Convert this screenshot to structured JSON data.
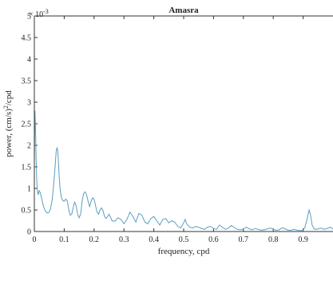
{
  "chart_data": {
    "type": "line",
    "title": "Amasra",
    "xlabel": "frequency, cpd",
    "ylabel_base": "power, (cm/s)",
    "ylabel_sup": "2",
    "ylabel_tail": "/cpd",
    "y_exponent_base": "× 10",
    "y_exponent_sup": "-3",
    "xlim": [
      0,
      1
    ],
    "ylim": [
      0,
      5
    ],
    "xticks": [
      0,
      0.1,
      0.2,
      0.3,
      0.4,
      0.5,
      0.6,
      0.7,
      0.8,
      0.9
    ],
    "xtick_labels": [
      "0",
      "0.1",
      "0.2",
      "0.3",
      "0.4",
      "0.5",
      "0.6",
      "0.7",
      "0.8",
      "0.9"
    ],
    "yticks": [
      0,
      0.5,
      1,
      1.5,
      2,
      2.5,
      3,
      3.5,
      4,
      4.5,
      5
    ],
    "ytick_labels": [
      "0",
      "0.5",
      "1",
      "1.5",
      "2",
      "2.5",
      "3",
      "3.5",
      "4",
      "4.5",
      "5"
    ],
    "grid": false,
    "line_color": "#5a9fc0",
    "series": [
      {
        "x": [
          0.0,
          0.002,
          0.004,
          0.006,
          0.008,
          0.01,
          0.013,
          0.016,
          0.02,
          0.025,
          0.03,
          0.035,
          0.04,
          0.045,
          0.05,
          0.055,
          0.06,
          0.065,
          0.07,
          0.073,
          0.076,
          0.078,
          0.08,
          0.083,
          0.086,
          0.09,
          0.095,
          0.1,
          0.105,
          0.11,
          0.115,
          0.12,
          0.125,
          0.13,
          0.135,
          0.14,
          0.145,
          0.15,
          0.155,
          0.16,
          0.165,
          0.17,
          0.175,
          0.18,
          0.185,
          0.19,
          0.195,
          0.2,
          0.205,
          0.21,
          0.215,
          0.22,
          0.225,
          0.23,
          0.235,
          0.24,
          0.245,
          0.25,
          0.255,
          0.26,
          0.27,
          0.28,
          0.29,
          0.3,
          0.31,
          0.32,
          0.33,
          0.34,
          0.35,
          0.36,
          0.37,
          0.38,
          0.39,
          0.4,
          0.41,
          0.42,
          0.43,
          0.44,
          0.45,
          0.46,
          0.47,
          0.48,
          0.49,
          0.5,
          0.505,
          0.51,
          0.52,
          0.53,
          0.54,
          0.55,
          0.56,
          0.57,
          0.58,
          0.59,
          0.6,
          0.61,
          0.62,
          0.63,
          0.64,
          0.65,
          0.66,
          0.67,
          0.68,
          0.69,
          0.7,
          0.71,
          0.72,
          0.73,
          0.74,
          0.75,
          0.76,
          0.77,
          0.78,
          0.79,
          0.8,
          0.81,
          0.82,
          0.83,
          0.84,
          0.85,
          0.86,
          0.87,
          0.88,
          0.89,
          0.9,
          0.905,
          0.91,
          0.915,
          0.92,
          0.925,
          0.93,
          0.935,
          0.94,
          0.95,
          0.96,
          0.97,
          0.98,
          0.99,
          1.0
        ],
        "y": [
          1.6,
          2.8,
          2.4,
          1.7,
          1.2,
          0.95,
          0.85,
          0.95,
          0.9,
          0.75,
          0.6,
          0.5,
          0.45,
          0.43,
          0.45,
          0.55,
          0.75,
          1.1,
          1.55,
          1.85,
          1.95,
          1.9,
          1.7,
          1.3,
          1.0,
          0.8,
          0.72,
          0.7,
          0.75,
          0.72,
          0.52,
          0.38,
          0.4,
          0.55,
          0.68,
          0.6,
          0.4,
          0.32,
          0.4,
          0.7,
          0.88,
          0.92,
          0.85,
          0.7,
          0.58,
          0.7,
          0.78,
          0.75,
          0.6,
          0.45,
          0.4,
          0.5,
          0.55,
          0.48,
          0.35,
          0.3,
          0.35,
          0.4,
          0.33,
          0.25,
          0.24,
          0.32,
          0.28,
          0.18,
          0.28,
          0.45,
          0.35,
          0.22,
          0.42,
          0.38,
          0.22,
          0.18,
          0.3,
          0.35,
          0.25,
          0.15,
          0.28,
          0.3,
          0.2,
          0.25,
          0.22,
          0.12,
          0.08,
          0.2,
          0.28,
          0.18,
          0.1,
          0.08,
          0.12,
          0.1,
          0.07,
          0.05,
          0.1,
          0.12,
          0.07,
          0.05,
          0.15,
          0.1,
          0.05,
          0.08,
          0.14,
          0.09,
          0.05,
          0.04,
          0.06,
          0.1,
          0.06,
          0.04,
          0.07,
          0.05,
          0.03,
          0.04,
          0.06,
          0.08,
          0.05,
          0.03,
          0.04,
          0.09,
          0.06,
          0.03,
          0.03,
          0.05,
          0.03,
          0.02,
          0.03,
          0.08,
          0.2,
          0.35,
          0.5,
          0.38,
          0.15,
          0.08,
          0.05,
          0.06,
          0.08,
          0.05,
          0.07,
          0.1,
          0.06
        ]
      }
    ]
  }
}
